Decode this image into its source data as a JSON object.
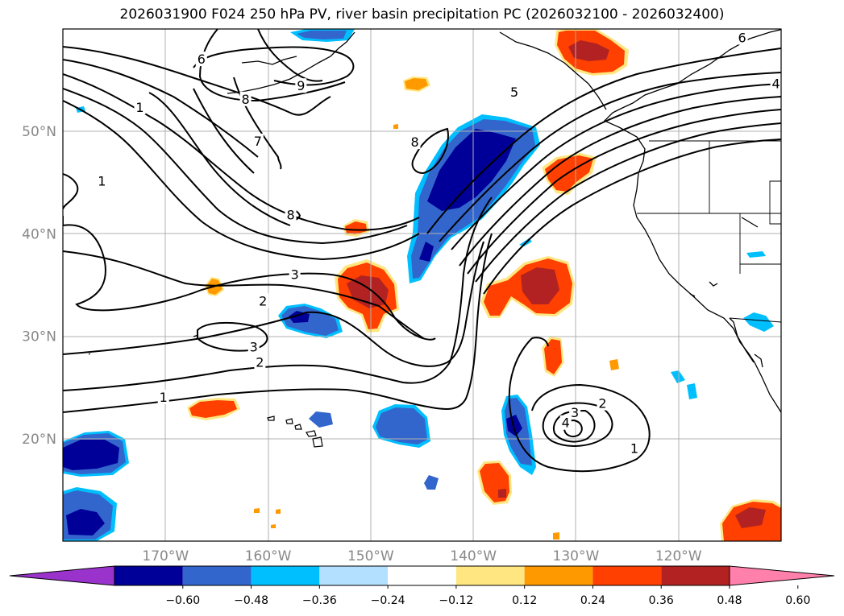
{
  "title": "2026031900 F024 250 hPa PV, river basin precipitation PC (2026032100 - 2026032400)",
  "map": {
    "lon_range": [
      -180,
      -110
    ],
    "lat_range": [
      10,
      60
    ],
    "lon_ticks": [
      {
        "lon": -170,
        "label": "170°W"
      },
      {
        "lon": -160,
        "label": "160°W"
      },
      {
        "lon": -150,
        "label": "150°W"
      },
      {
        "lon": -140,
        "label": "140°W"
      },
      {
        "lon": -130,
        "label": "130°W"
      },
      {
        "lon": -120,
        "label": "120°W"
      }
    ],
    "lat_ticks": [
      {
        "lat": 50,
        "label": "50°N"
      },
      {
        "lat": 40,
        "label": "40°N"
      },
      {
        "lat": 30,
        "label": "30°N"
      },
      {
        "lat": 20,
        "label": "20°N"
      }
    ],
    "gridlines": true
  },
  "colorbar": {
    "colors": [
      "#9933cc",
      "#000099",
      "#3366cc",
      "#00bfff",
      "#b3e0ff",
      "#ffffff",
      "#ffe680",
      "#ff9900",
      "#ff4000",
      "#b22222",
      "#ff80aa"
    ],
    "ticks": [
      "−0.60",
      "−0.48",
      "−0.36",
      "−0.24",
      "−0.12",
      "0.12",
      "0.24",
      "0.36",
      "0.48",
      "0.60"
    ]
  },
  "contour_labels": [
    {
      "text": "6",
      "lon": -166.5,
      "lat": 57.0
    },
    {
      "text": "6",
      "lon": -113.8,
      "lat": 59.1
    },
    {
      "text": "4",
      "lon": -110.5,
      "lat": 54.6
    },
    {
      "text": "5",
      "lon": -136.0,
      "lat": 53.8
    },
    {
      "text": "9",
      "lon": -156.8,
      "lat": 54.4
    },
    {
      "text": "8",
      "lon": -162.2,
      "lat": 53.1
    },
    {
      "text": "8",
      "lon": -145.7,
      "lat": 48.9
    },
    {
      "text": "7",
      "lon": -161.0,
      "lat": 49.0
    },
    {
      "text": "8",
      "lon": -157.8,
      "lat": 41.8
    },
    {
      "text": "1",
      "lon": -176.2,
      "lat": 45.1
    },
    {
      "text": "1",
      "lon": -172.5,
      "lat": 52.3
    },
    {
      "text": "3",
      "lon": -157.4,
      "lat": 36.0
    },
    {
      "text": "2",
      "lon": -160.5,
      "lat": 33.4
    },
    {
      "text": "3",
      "lon": -161.4,
      "lat": 28.9
    },
    {
      "text": "2",
      "lon": -160.8,
      "lat": 27.4
    },
    {
      "text": "1",
      "lon": -170.2,
      "lat": 24.0
    },
    {
      "text": "2",
      "lon": -127.4,
      "lat": 23.4
    },
    {
      "text": "3",
      "lon": -130.1,
      "lat": 22.5
    },
    {
      "text": "4",
      "lon": -131.0,
      "lat": 21.5
    },
    {
      "text": "1",
      "lon": -124.3,
      "lat": 19.0
    }
  ]
}
